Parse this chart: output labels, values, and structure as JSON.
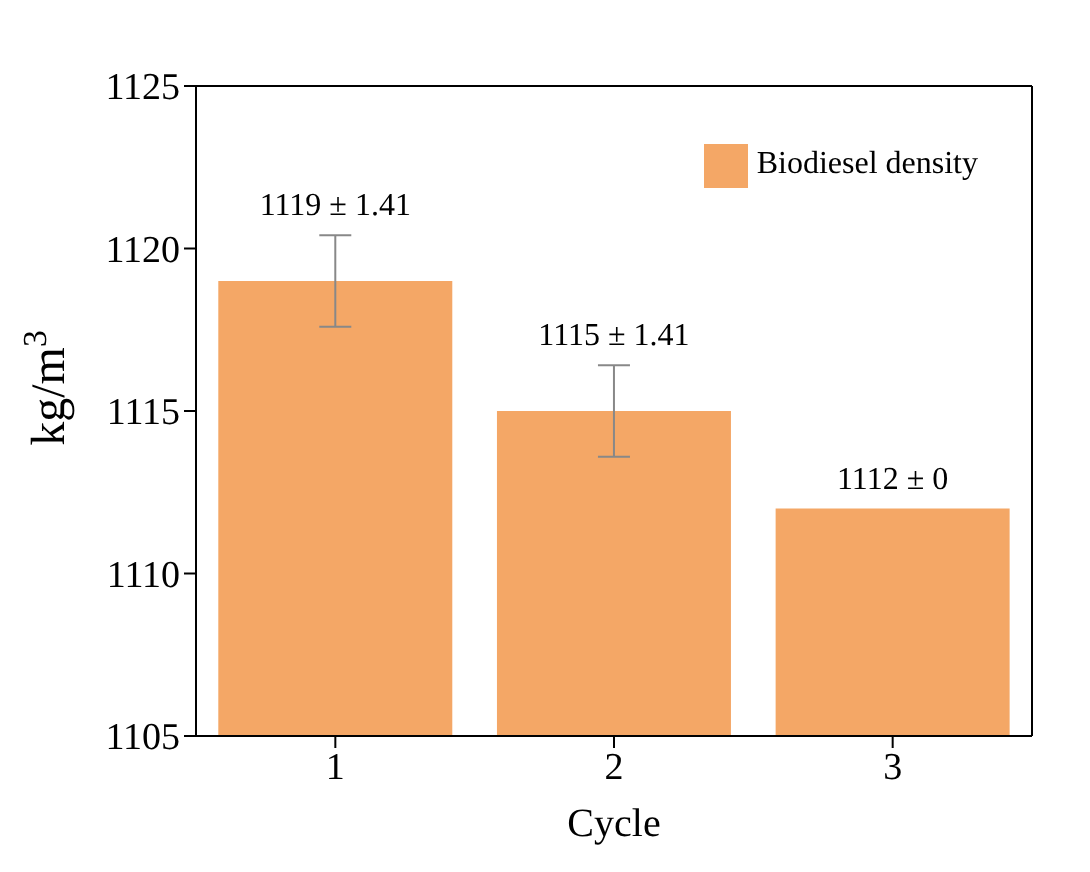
{
  "chart_data": {
    "type": "bar",
    "xlabel": "Cycle",
    "ylabel": "kg/m$^{3}$",
    "categories": [
      "1",
      "2",
      "3"
    ],
    "series": [
      {
        "name": "Biodiesel density",
        "color": "#f4a766",
        "values": [
          1119,
          1115,
          1112
        ],
        "errors": [
          1.41,
          1.41,
          0
        ],
        "value_labels": [
          "1119 ± 1.41",
          "1115 ± 1.41",
          "1112 ± 0"
        ]
      }
    ],
    "ylim": [
      1105,
      1125
    ],
    "yticks": [
      1105,
      1110,
      1115,
      1120,
      1125
    ],
    "grid": false,
    "legend": "top right"
  }
}
